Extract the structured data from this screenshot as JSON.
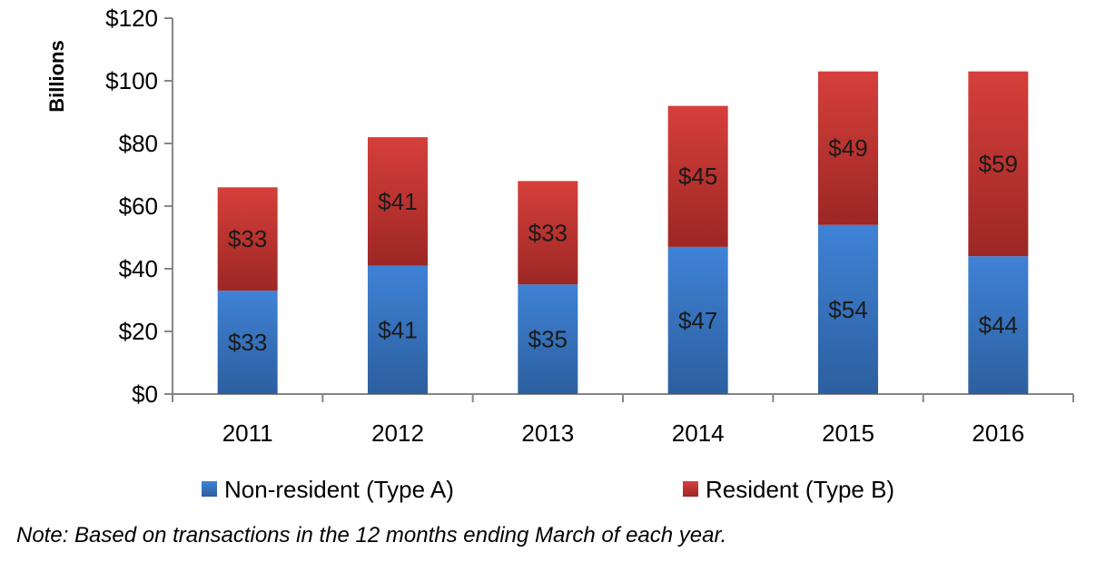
{
  "chart_data": {
    "type": "bar",
    "stacked": true,
    "categories": [
      "2011",
      "2012",
      "2013",
      "2014",
      "2015",
      "2016"
    ],
    "series": [
      {
        "name": "Non-resident (Type A)",
        "values": [
          33,
          41,
          35,
          47,
          54,
          44
        ],
        "labels": [
          "$33",
          "$41",
          "$35",
          "$47",
          "$54",
          "$44"
        ],
        "color": "#3a78c9"
      },
      {
        "name": "Resident (Type B)",
        "values": [
          33,
          41,
          33,
          45,
          49,
          59
        ],
        "labels": [
          "$33",
          "$41",
          "$33",
          "$45",
          "$49",
          "$59"
        ],
        "color": "#c9322f"
      }
    ],
    "ylabel": "Billions",
    "ylim": [
      0,
      120
    ],
    "yticks": [
      0,
      20,
      40,
      60,
      80,
      100,
      120
    ],
    "ytick_labels": [
      "$0",
      "$20",
      "$40",
      "$60",
      "$80",
      "$100",
      "$120"
    ],
    "grid": false,
    "legend": "bottom"
  },
  "note": "Note: Based on transactions in the 12 months ending March of each year."
}
